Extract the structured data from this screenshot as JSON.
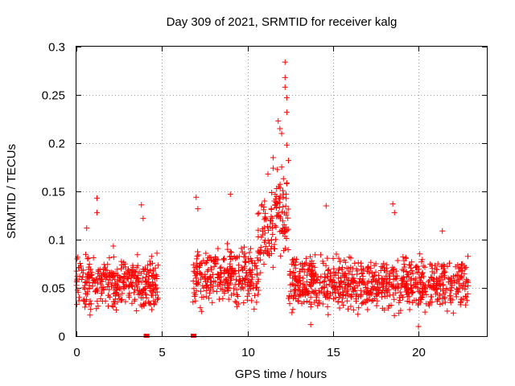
{
  "chart_data": {
    "type": "scatter",
    "title": "Day 309 of 2021, SRMTID for receiver kalg",
    "xlabel": "GPS time / hours",
    "ylabel": "SRMTID / TECUs",
    "xlim": [
      0,
      24
    ],
    "ylim": [
      0,
      0.3
    ],
    "xticks": [
      0,
      5,
      10,
      15,
      20
    ],
    "xtick_labels": [
      "0",
      "5",
      "10",
      "15",
      "20"
    ],
    "yticks": [
      0,
      0.05,
      0.1,
      0.15,
      0.2,
      0.25,
      0.3
    ],
    "ytick_labels": [
      "0",
      "0.05",
      "0.1",
      "0.15",
      "0.2",
      "0.25",
      "0.3"
    ],
    "grid": true,
    "marker": "plus",
    "color": "#ff0000",
    "series": [
      {
        "name": "SRMTID",
        "data_segments": [
          {
            "x_start": 0.0,
            "x_end": 4.8,
            "baseline": 0.055,
            "spread": 0.028
          },
          {
            "x_start": 6.8,
            "x_end": 10.6,
            "baseline": 0.062,
            "spread": 0.03
          },
          {
            "x_start": 10.6,
            "x_end": 12.4,
            "baseline": 0.09,
            "spread": 0.045
          },
          {
            "x_start": 12.4,
            "x_end": 22.9,
            "baseline": 0.055,
            "spread": 0.028
          }
        ],
        "notable_points": [
          {
            "x": 0.6,
            "y": 0.112
          },
          {
            "x": 1.2,
            "y": 0.143
          },
          {
            "x": 1.2,
            "y": 0.128
          },
          {
            "x": 3.8,
            "y": 0.136
          },
          {
            "x": 3.9,
            "y": 0.122
          },
          {
            "x": 7.0,
            "y": 0.144
          },
          {
            "x": 7.1,
            "y": 0.132
          },
          {
            "x": 9.0,
            "y": 0.147
          },
          {
            "x": 11.0,
            "y": 0.14
          },
          {
            "x": 11.2,
            "y": 0.168
          },
          {
            "x": 11.5,
            "y": 0.185
          },
          {
            "x": 11.8,
            "y": 0.223
          },
          {
            "x": 11.9,
            "y": 0.215
          },
          {
            "x": 12.0,
            "y": 0.21
          },
          {
            "x": 12.2,
            "y": 0.284
          },
          {
            "x": 12.2,
            "y": 0.268
          },
          {
            "x": 12.2,
            "y": 0.258
          },
          {
            "x": 12.3,
            "y": 0.247
          },
          {
            "x": 12.3,
            "y": 0.232
          },
          {
            "x": 12.3,
            "y": 0.198
          },
          {
            "x": 12.4,
            "y": 0.182
          },
          {
            "x": 12.3,
            "y": 0.158
          },
          {
            "x": 14.6,
            "y": 0.135
          },
          {
            "x": 18.5,
            "y": 0.137
          },
          {
            "x": 18.6,
            "y": 0.128
          },
          {
            "x": 21.4,
            "y": 0.109
          },
          {
            "x": 20.0,
            "y": 0.01
          },
          {
            "x": 13.7,
            "y": 0.012
          }
        ],
        "zero_markers": [
          {
            "x": 4.05,
            "y": 0
          },
          {
            "x": 4.15,
            "y": 0
          },
          {
            "x": 6.8,
            "y": 0
          },
          {
            "x": 6.9,
            "y": 0
          }
        ]
      }
    ]
  }
}
